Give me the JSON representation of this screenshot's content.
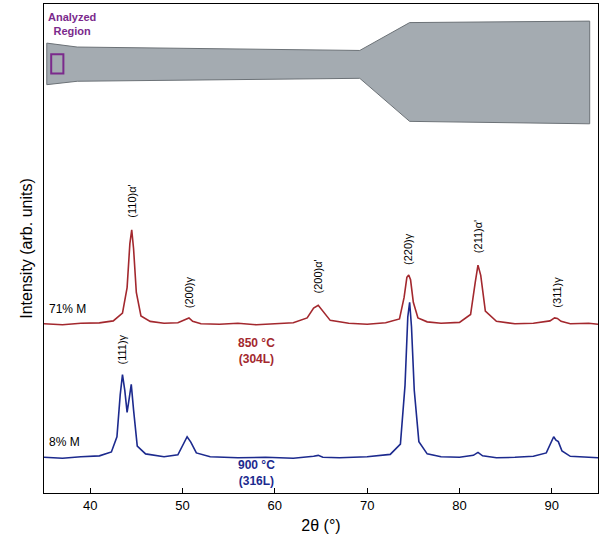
{
  "chart_data": {
    "type": "line",
    "xlabel": "2θ (°)",
    "ylabel": "Intensity (arb. units)",
    "xlim": [
      35,
      95
    ],
    "xticks": [
      40,
      50,
      60,
      70,
      80,
      90
    ],
    "ylim": [
      0,
      100
    ],
    "yticks": [],
    "tick_labels": "x",
    "grid": false,
    "inset_label": "Analyzed Region",
    "series": [
      {
        "name": "850 °C (304L)",
        "label": "71% M",
        "color": "#a3282e",
        "x": [
          35,
          37,
          39,
          41,
          42.5,
          43.5,
          44.0,
          44.3,
          44.5,
          44.7,
          45.0,
          45.5,
          46.5,
          48,
          49.5,
          50.3,
          50.7,
          51.1,
          52,
          54,
          56,
          58,
          60,
          62,
          63.5,
          64.2,
          64.7,
          65.2,
          66,
          68,
          70,
          72,
          73.5,
          74.0,
          74.3,
          74.5,
          74.7,
          75.0,
          75.5,
          76.5,
          78,
          80,
          81.2,
          81.7,
          82.0,
          82.3,
          82.8,
          84,
          86,
          88,
          89.8,
          90.3,
          90.6,
          91,
          92,
          94,
          95
        ],
        "values": [
          34.6,
          34.4,
          34.7,
          34.8,
          35.2,
          36.8,
          42,
          51,
          53.8,
          50,
          41,
          36.2,
          35.1,
          34.7,
          34.8,
          35.4,
          35.8,
          35.1,
          34.6,
          34.5,
          34.7,
          34.4,
          34.6,
          34.8,
          35.8,
          37.8,
          38.4,
          37.2,
          35.3,
          34.7,
          34.5,
          34.8,
          35.6,
          40,
          44.1,
          44.6,
          43.6,
          39,
          35.8,
          35,
          34.7,
          34.9,
          36.5,
          43,
          46.6,
          44.5,
          37.2,
          35.1,
          34.6,
          34.7,
          35.2,
          35.8,
          35.7,
          35.1,
          34.6,
          34.7,
          34.5
        ],
        "peaks": [
          {
            "x": 44.5,
            "label": "(110)α'"
          },
          {
            "x": 50.7,
            "label": "(200)γ"
          },
          {
            "x": 64.7,
            "label": "(200)α'"
          },
          {
            "x": 74.5,
            "label": "(220)γ"
          },
          {
            "x": 82.0,
            "label": "(211)α'"
          },
          {
            "x": 90.6,
            "label": "(311)γ"
          }
        ]
      },
      {
        "name": "900 °C (316L)",
        "label": "8% M",
        "color": "#1c2a8e",
        "x": [
          35,
          37,
          39,
          41,
          42.3,
          42.9,
          43.25,
          43.5,
          43.75,
          44.0,
          44.2,
          44.45,
          44.7,
          45.1,
          46,
          48,
          49.5,
          50.1,
          50.5,
          50.9,
          51.5,
          53,
          56,
          59,
          62,
          64.2,
          64.7,
          65.2,
          67,
          70,
          72.5,
          73.6,
          74.1,
          74.4,
          74.6,
          74.8,
          75.1,
          75.6,
          76.5,
          78,
          80,
          81.5,
          82.0,
          82.5,
          84,
          86,
          88,
          89.4,
          89.9,
          90.2,
          90.45,
          90.7,
          91.1,
          92,
          94,
          95
        ],
        "values": [
          7.3,
          7.1,
          7.4,
          7.6,
          8.4,
          11.5,
          20,
          24.2,
          21,
          16.5,
          19,
          22.2,
          17,
          9.6,
          8.0,
          7.4,
          7.8,
          10,
          11.5,
          10.4,
          8.2,
          7.4,
          7.2,
          7.3,
          7.1,
          7.5,
          7.7,
          7.3,
          7.2,
          7.4,
          7.9,
          10,
          22,
          36,
          39,
          34,
          21,
          10.5,
          8,
          7.4,
          7.3,
          7.7,
          8.3,
          7.6,
          7.2,
          7.3,
          7.5,
          8.2,
          10.2,
          11.5,
          10.8,
          10.5,
          8.6,
          7.5,
          7.3,
          7.2
        ],
        "peaks": [
          {
            "x": 43.5,
            "label": "(111)γ"
          }
        ]
      }
    ]
  }
}
